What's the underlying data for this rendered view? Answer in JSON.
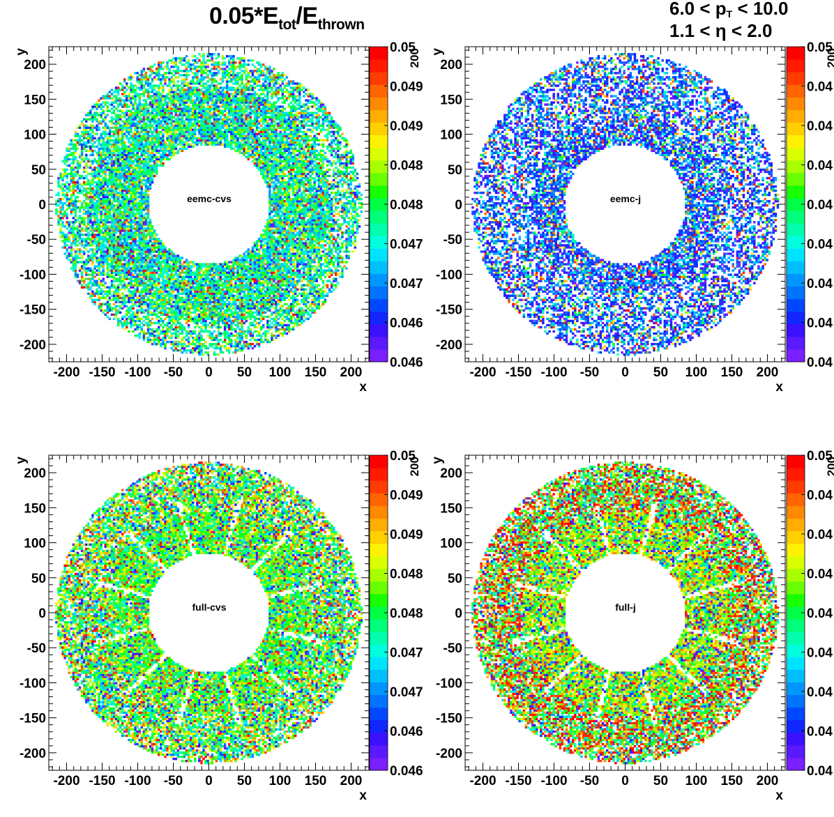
{
  "title": {
    "prefix": "0.05*E",
    "sub1": "tot",
    "mid": "/E",
    "sub2": "thrown"
  },
  "cuts": {
    "line1_a": "6.0 < p",
    "line1_sub": "T",
    "line1_b": " < 10.0",
    "line2_a": "1.1 < ",
    "line2_eta": "η",
    "line2_b": " < 2.0"
  },
  "axes": {
    "x_label": "x",
    "y_label": "y",
    "ticks": [
      -200,
      -150,
      -100,
      -50,
      0,
      50,
      100,
      150,
      200
    ],
    "range": [
      -225,
      225
    ]
  },
  "colorbar": {
    "stops": [
      "#7a1fff",
      "#5b19ff",
      "#3a10ff",
      "#1226ff",
      "#0048ff",
      "#0073ff",
      "#0096ff",
      "#00bfff",
      "#00e3ff",
      "#00ffdd",
      "#00ffae",
      "#00ff7a",
      "#00ff47",
      "#17ff00",
      "#6aff00",
      "#a8ff00",
      "#dbff00",
      "#fff200",
      "#ffcf00",
      "#ffad00",
      "#ff8900",
      "#ff6400",
      "#ff3c00",
      "#ff1a00",
      "#ff0000"
    ],
    "overflow_label": "200",
    "panel_labels": [
      [
        "0.05",
        "0.049",
        "0.049",
        "0.048",
        "0.048",
        "0.047",
        "0.047",
        "0.046",
        "0.046"
      ],
      [
        "0.05",
        "0.04",
        "0.04",
        "0.04",
        "0.04",
        "0.04",
        "0.04",
        "0.04",
        "0.04"
      ],
      [
        "0.05",
        "0.049",
        "0.049",
        "0.048",
        "0.048",
        "0.047",
        "0.047",
        "0.046",
        "0.046"
      ],
      [
        "0.05",
        "0.04",
        "0.04",
        "0.04",
        "0.04",
        "0.04",
        "0.04",
        "0.04",
        "0.04"
      ]
    ]
  },
  "chart_data": [
    {
      "type": "heatmap",
      "label": "eemc-cvs",
      "xlabel": "x",
      "ylabel": "y",
      "xlim": [
        -225,
        225
      ],
      "ylim": [
        -225,
        225
      ],
      "ring": {
        "r_inner": 85,
        "r_outer": 215
      },
      "z_range": [
        0.046,
        0.05
      ],
      "pattern": "uniform",
      "dominant": "cyan-green"
    },
    {
      "type": "heatmap",
      "label": "eemc-j",
      "xlabel": "x",
      "ylabel": "y",
      "xlim": [
        -225,
        225
      ],
      "ylim": [
        -225,
        225
      ],
      "ring": {
        "r_inner": 85,
        "r_outer": 215
      },
      "z_range": [
        0.04,
        0.05
      ],
      "pattern": "uniform",
      "dominant": "blue"
    },
    {
      "type": "heatmap",
      "label": "full-cvs",
      "xlabel": "x",
      "ylabel": "y",
      "xlim": [
        -225,
        225
      ],
      "ylim": [
        -225,
        225
      ],
      "ring": {
        "r_inner": 85,
        "r_outer": 215
      },
      "z_range": [
        0.046,
        0.05
      ],
      "pattern": "12-sector",
      "dominant": "green"
    },
    {
      "type": "heatmap",
      "label": "full-j",
      "xlabel": "x",
      "ylabel": "y",
      "xlim": [
        -225,
        225
      ],
      "ylim": [
        -225,
        225
      ],
      "ring": {
        "r_inner": 85,
        "r_outer": 215
      },
      "z_range": [
        0.04,
        0.05
      ],
      "pattern": "12-sector",
      "dominant": "red-green"
    }
  ]
}
